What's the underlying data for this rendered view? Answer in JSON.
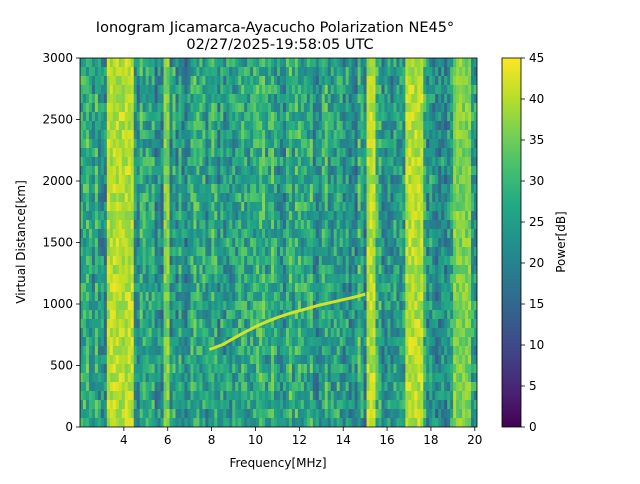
{
  "chart_data": {
    "type": "heatmap",
    "title": "Ionogram Jicamarca-Ayacucho Polarization NE45°",
    "subtitle": "02/27/2025-19:58:05 UTC",
    "xlabel": "Frequency[MHz]",
    "ylabel": "Virtual Distance[km]",
    "colorbar_label": "Power[dB]",
    "colormap": "viridis",
    "xlim": [
      2.0,
      20.1
    ],
    "ylim": [
      0,
      3000
    ],
    "clim": [
      0,
      45
    ],
    "x_ticks": [
      4,
      6,
      8,
      10,
      12,
      14,
      16,
      18,
      20
    ],
    "x_tick_labels": [
      "4",
      "6",
      "8",
      "10",
      "12",
      "14",
      "16",
      "18",
      "20"
    ],
    "y_ticks": [
      0,
      500,
      1000,
      1500,
      2000,
      2500,
      3000
    ],
    "y_tick_labels": [
      "0",
      "500",
      "1000",
      "1500",
      "2000",
      "2500",
      "3000"
    ],
    "colorbar_ticks": [
      0,
      5,
      10,
      15,
      20,
      25,
      30,
      35,
      40,
      45
    ],
    "colorbar_tick_labels": [
      "0",
      "5",
      "10",
      "15",
      "20",
      "25",
      "30",
      "35",
      "40",
      "45"
    ],
    "background_power_db": 25,
    "strong_bands": [
      {
        "from_mhz": 3.2,
        "to_mhz": 4.4,
        "power_db": 44
      },
      {
        "from_mhz": 5.8,
        "to_mhz": 6.1,
        "power_db": 40
      },
      {
        "from_mhz": 15.0,
        "to_mhz": 15.5,
        "power_db": 44
      },
      {
        "from_mhz": 16.8,
        "to_mhz": 17.6,
        "power_db": 44
      },
      {
        "from_mhz": 19.0,
        "to_mhz": 19.8,
        "power_db": 40
      }
    ],
    "echo_trace": {
      "name": "",
      "frequency_mhz": [
        7.9,
        8.5,
        9.0,
        9.5,
        10.0,
        10.5,
        11.0,
        11.5,
        12.0,
        12.5,
        13.0,
        13.5,
        14.0,
        14.5,
        15.0
      ],
      "virtual_distance_km": [
        630,
        670,
        720,
        770,
        815,
        855,
        890,
        920,
        945,
        970,
        995,
        1015,
        1035,
        1055,
        1080
      ],
      "power_db": 42
    }
  }
}
